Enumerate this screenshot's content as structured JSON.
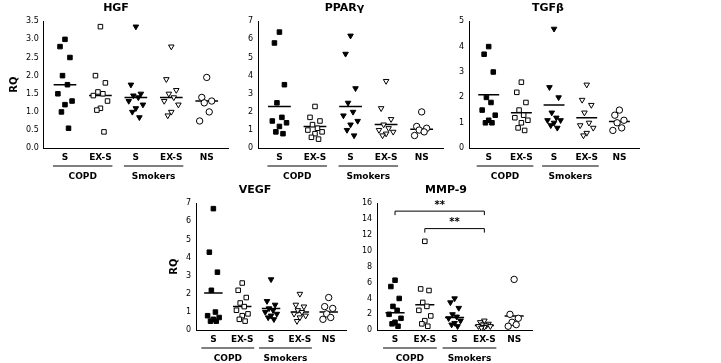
{
  "chart_data": [
    {
      "type": "scatter",
      "title": "HGF",
      "y_label": "RQ",
      "categories": [
        "S",
        "EX-S",
        "S",
        "EX-S",
        "NS"
      ],
      "groups": [
        "COPD",
        "COPD",
        "Smokers",
        "Smokers",
        null
      ],
      "markers": [
        "square",
        "square-open",
        "triangle-down",
        "triangle-down-open",
        "circle-open"
      ],
      "color": "#000000",
      "values": [
        [
          3.0,
          2.8,
          2.5,
          2.0,
          1.75,
          1.5,
          1.3,
          1.2,
          1.0,
          0.55
        ],
        [
          3.35,
          2.0,
          1.8,
          1.55,
          1.5,
          1.45,
          1.3,
          1.1,
          1.05,
          0.45
        ],
        [
          3.35,
          1.75,
          1.5,
          1.45,
          1.4,
          1.3,
          1.2,
          1.1,
          1.0,
          0.85
        ],
        [
          2.8,
          1.9,
          1.6,
          1.5,
          1.4,
          1.3,
          1.2,
          1.0,
          0.9
        ],
        [
          1.95,
          1.4,
          1.3,
          1.25,
          1.0,
          0.75
        ]
      ],
      "means": [
        1.75,
        1.45,
        1.4,
        1.4,
        1.3
      ],
      "ylim": [
        0,
        3.5
      ],
      "yticks": [
        {
          "value": 0,
          "label": "0.0"
        },
        {
          "value": 0.5,
          "label": "0.5"
        },
        {
          "value": 1,
          "label": "1.0"
        },
        {
          "value": 1.5,
          "label": "1.5"
        },
        {
          "value": 2,
          "label": "2.0"
        },
        {
          "value": 2.5,
          "label": "2.5"
        },
        {
          "value": 3,
          "label": "3.0"
        },
        {
          "value": 3.5,
          "label": "3.5"
        }
      ],
      "grid": false
    },
    {
      "type": "scatter",
      "title": "PPARγ",
      "categories": [
        "S",
        "EX-S",
        "S",
        "EX-S",
        "NS"
      ],
      "groups": [
        "COPD",
        "COPD",
        "Smokers",
        "Smokers",
        null
      ],
      "markers": [
        "square",
        "square-open",
        "triangle-down",
        "triangle-down-open",
        "circle-open"
      ],
      "color": "#000000",
      "values": [
        [
          6.4,
          5.8,
          3.5,
          2.5,
          1.7,
          1.5,
          1.4,
          1.2,
          0.9,
          0.8
        ],
        [
          2.3,
          1.7,
          1.5,
          1.3,
          1.1,
          1.0,
          0.9,
          0.8,
          0.6,
          0.5
        ],
        [
          6.2,
          5.2,
          3.3,
          2.5,
          2.0,
          1.8,
          1.5,
          1.3,
          1.0,
          0.7
        ],
        [
          3.7,
          2.2,
          1.6,
          1.3,
          1.1,
          1.0,
          0.9,
          0.8,
          0.7
        ],
        [
          2.0,
          1.2,
          1.1,
          1.0,
          0.9,
          0.7
        ]
      ],
      "means": [
        2.3,
        1.2,
        2.3,
        1.3,
        1.05
      ],
      "ylim": [
        0,
        7
      ],
      "yticks": [
        0,
        1,
        2,
        3,
        4,
        5,
        6,
        7
      ],
      "grid": false
    },
    {
      "type": "scatter",
      "title": "TGFβ",
      "categories": [
        "S",
        "EX-S",
        "S",
        "EX-S",
        "NS"
      ],
      "groups": [
        "COPD",
        "COPD",
        "Smokers",
        "Smokers",
        null
      ],
      "markers": [
        "square",
        "square-open",
        "triangle-down",
        "triangle-down-open",
        "circle-open"
      ],
      "color": "#000000",
      "values": [
        [
          4.0,
          3.7,
          3.0,
          2.0,
          1.8,
          1.5,
          1.3,
          1.1,
          1.0,
          1.0
        ],
        [
          2.6,
          2.2,
          1.8,
          1.5,
          1.3,
          1.2,
          1.1,
          1.0,
          0.8,
          0.7
        ],
        [
          4.7,
          2.4,
          2.0,
          1.4,
          1.2,
          1.1,
          1.1,
          1.0,
          0.9,
          0.8
        ],
        [
          2.5,
          1.9,
          1.7,
          1.4,
          1.0,
          0.9,
          0.8,
          0.6,
          0.5
        ],
        [
          1.5,
          1.3,
          1.1,
          1.0,
          0.8,
          0.7
        ]
      ],
      "means": [
        2.1,
        1.4,
        1.7,
        1.2,
        1.05
      ],
      "ylim": [
        0,
        5
      ],
      "yticks": [
        0,
        1,
        2,
        3,
        4,
        5
      ],
      "grid": false
    },
    {
      "type": "scatter",
      "title": "VEGF",
      "y_label": "RQ",
      "categories": [
        "S",
        "EX-S",
        "S",
        "EX-S",
        "NS"
      ],
      "groups": [
        "COPD",
        "COPD",
        "Smokers",
        "Smokers",
        null
      ],
      "markers": [
        "square",
        "square-open",
        "triangle-down",
        "triangle-down-open",
        "circle-open"
      ],
      "color": "#000000",
      "values": [
        [
          6.7,
          4.3,
          3.2,
          2.2,
          1.0,
          0.8,
          0.7,
          0.6,
          0.5,
          0.5
        ],
        [
          2.6,
          2.2,
          1.8,
          1.5,
          1.3,
          1.1,
          0.9,
          0.8,
          0.6,
          0.5
        ],
        [
          2.8,
          1.6,
          1.4,
          1.2,
          1.1,
          1.0,
          0.9,
          0.8,
          0.7,
          0.6
        ],
        [
          2.0,
          1.4,
          1.3,
          1.1,
          1.0,
          0.9,
          0.8,
          0.7,
          0.5
        ],
        [
          1.8,
          1.3,
          1.2,
          0.9,
          0.7,
          0.6
        ]
      ],
      "means": [
        2.05,
        1.3,
        1.2,
        1.0,
        1.0
      ],
      "ylim": [
        0,
        7
      ],
      "yticks": [
        0,
        1,
        2,
        3,
        4,
        5,
        6,
        7
      ],
      "grid": false
    },
    {
      "type": "scatter",
      "title": "MMP-9",
      "categories": [
        "S",
        "EX-S",
        "S",
        "EX-S",
        "NS"
      ],
      "groups": [
        "COPD",
        "COPD",
        "Smokers",
        "Smokers",
        null
      ],
      "markers": [
        "square",
        "square-open",
        "triangle-down",
        "triangle-down-open",
        "circle-open"
      ],
      "color": "#000000",
      "values": [
        [
          6.3,
          5.5,
          4.0,
          3.0,
          2.5,
          2.0,
          1.5,
          1.0,
          0.8,
          0.5
        ],
        [
          11.2,
          5.2,
          5.0,
          3.5,
          3.0,
          2.5,
          1.8,
          1.2,
          0.8,
          0.5
        ],
        [
          4.0,
          3.5,
          2.8,
          2.0,
          1.7,
          1.5,
          1.2,
          0.9,
          0.7,
          0.5
        ],
        [
          1.2,
          1.0,
          0.8,
          0.7,
          0.6,
          0.5,
          0.5,
          0.4,
          0.3
        ],
        [
          6.4,
          2.0,
          1.5,
          1.0,
          0.7,
          0.5
        ]
      ],
      "means": [
        2.2,
        3.2,
        1.6,
        0.6,
        1.8
      ],
      "ylim": [
        0,
        16
      ],
      "yticks": [
        0,
        2,
        4,
        6,
        8,
        10,
        12,
        14,
        16
      ],
      "grid": false,
      "annotations": [
        {
          "from": 0,
          "to": 3,
          "y": 15,
          "label": "**"
        },
        {
          "from": 1,
          "to": 3,
          "y": 12.8,
          "label": "**"
        }
      ]
    }
  ]
}
